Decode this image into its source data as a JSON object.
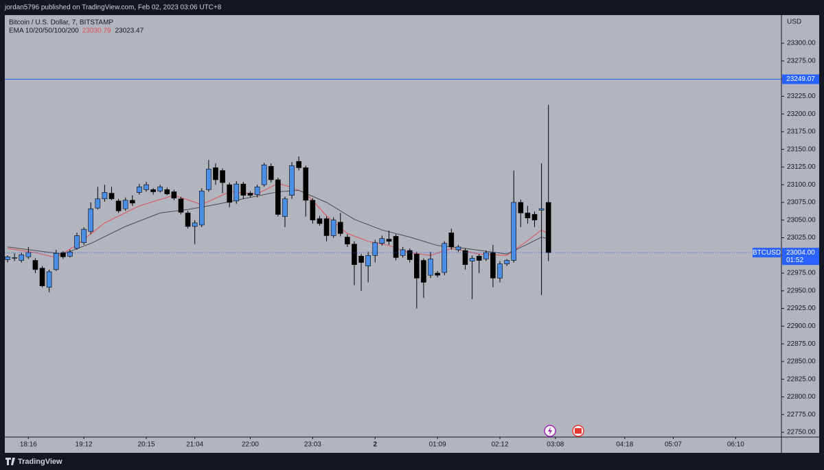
{
  "header": "jordan5796 published on TradingView.com, Feb 02, 2023 03:06 UTC+8",
  "brand": "TradingView",
  "chart_data": {
    "type": "candlestick",
    "title": "Bitcoin / U.S. Dollar, 7, BITSTAMP",
    "indicator": "EMA 10/20/50/100/200",
    "currency": "USD",
    "up_color": "#4a8ee6",
    "down_color": "#000000",
    "grid": false,
    "xlim": [
      -0.4,
      111.6
    ],
    "xticks": [
      {
        "value": 3,
        "label": "18:16"
      },
      {
        "value": 11,
        "label": "19:12"
      },
      {
        "value": 20,
        "label": "20:15"
      },
      {
        "value": 27,
        "label": "21:04"
      },
      {
        "value": 35,
        "label": "22:00"
      },
      {
        "value": 44,
        "label": "23:03"
      },
      {
        "value": 53,
        "label": "2"
      },
      {
        "value": 62,
        "label": "01:09"
      },
      {
        "value": 71,
        "label": "02:12"
      },
      {
        "value": 79,
        "label": "03:08"
      },
      {
        "value": 89,
        "label": "04:18"
      },
      {
        "value": 96,
        "label": "05:07"
      },
      {
        "value": 105,
        "label": "06:10"
      }
    ],
    "ylim": [
      22743.2,
      23339.8
    ],
    "yticks": [
      {
        "value": 22750,
        "label": "22750.00"
      },
      {
        "value": 22775,
        "label": "22775.00"
      },
      {
        "value": 22800,
        "label": "22800.00"
      },
      {
        "value": 22825,
        "label": "22825.00"
      },
      {
        "value": 22850,
        "label": "22850.00"
      },
      {
        "value": 22875,
        "label": "22875.00"
      },
      {
        "value": 22900,
        "label": "22900.00"
      },
      {
        "value": 22925,
        "label": "22925.00"
      },
      {
        "value": 22950,
        "label": "22950.00"
      },
      {
        "value": 22975,
        "label": "22975.00"
      },
      {
        "value": 23000,
        "label": "23000.00"
      },
      {
        "value": 23025,
        "label": "23025.00"
      },
      {
        "value": 23050,
        "label": "23050.00"
      },
      {
        "value": 23075,
        "label": "23075.00"
      },
      {
        "value": 23100,
        "label": "23100.00"
      },
      {
        "value": 23125,
        "label": "23125.00"
      },
      {
        "value": 23150,
        "label": "23150.00"
      },
      {
        "value": 23175,
        "label": "23175.00"
      },
      {
        "value": 23200,
        "label": "23200.00"
      },
      {
        "value": 23225,
        "label": "23225.00"
      },
      {
        "value": 23250,
        "label": "23250.00"
      },
      {
        "value": 23275,
        "label": "23275.00"
      },
      {
        "value": 23300,
        "label": "23300.00"
      }
    ],
    "open": [
      22994,
      22996,
      22993,
      22998,
      22993,
      22982,
      22955,
      22980,
      23004,
      22999,
      23010,
      23018,
      23034,
      23067,
      23080,
      23088,
      23077,
      23066,
      23078,
      23089,
      23093,
      23093,
      23091,
      23093,
      23090,
      23080,
      23060,
      23041,
      23043,
      23093,
      23124,
      23120,
      23100,
      23077,
      23101,
      23088,
      23086,
      23100,
      23126,
      23107,
      23055,
      23085,
      23133,
      23124,
      23078,
      23052,
      23052,
      23028,
      23047,
      23026,
      23016,
      22999,
      22985,
      23000,
      23017,
      23023,
      23027,
      23000,
      23007,
      23002,
      22993,
      22972,
      22975,
      22976,
      23032,
      23008,
      23007,
      22992,
      22999,
      22995,
      23004,
      22968,
      22988,
      22993,
      23075,
      23060,
      23058,
      23064,
      23075
    ],
    "high": [
      23000,
      23003,
      23004,
      23012,
      22996,
      22985,
      22980,
      23008,
      23006,
      23008,
      23032,
      23040,
      23075,
      23097,
      23100,
      23097,
      23080,
      23082,
      23085,
      23101,
      23104,
      23095,
      23100,
      23096,
      23093,
      23083,
      23063,
      23050,
      23095,
      23135,
      23130,
      23123,
      23103,
      23105,
      23104,
      23091,
      23100,
      23131,
      23130,
      23110,
      23083,
      23132,
      23140,
      23127,
      23081,
      23056,
      23055,
      23054,
      23060,
      23030,
      23020,
      23002,
      23005,
      23022,
      23028,
      23035,
      23030,
      23012,
      23010,
      23005,
      22996,
      23005,
      22978,
      23020,
      23038,
      23015,
      23010,
      23000,
      23002,
      23007,
      23015,
      22992,
      22995,
      23120,
      23079,
      23070,
      23062,
      23130,
      23213
    ],
    "low": [
      22990,
      22992,
      22990,
      22995,
      22975,
      22955,
      22948,
      22978,
      22995,
      22997,
      23008,
      23015,
      23030,
      23065,
      23076,
      23078,
      23060,
      23063,
      23070,
      23086,
      23090,
      23086,
      23089,
      23085,
      23078,
      23058,
      23038,
      23016,
      23040,
      23090,
      23100,
      23088,
      23068,
      23073,
      23080,
      23082,
      23082,
      23097,
      23103,
      23055,
      23040,
      23080,
      23120,
      23055,
      23045,
      23042,
      23020,
      23025,
      23027,
      23012,
      22958,
      22950,
      22962,
      22990,
      23014,
      23015,
      22993,
      22997,
      22990,
      22925,
      22940,
      22968,
      22969,
      22972,
      23008,
      23005,
      22980,
      22938,
      22975,
      22992,
      22955,
      22962,
      22985,
      22990,
      23040,
      23045,
      23040,
      22944,
      22992
    ],
    "close": [
      22998,
      22997,
      23001,
      23004,
      22980,
      22957,
      22977,
      23003,
      22998,
      23005,
      23028,
      23037,
      23066,
      23080,
      23089,
      23080,
      23063,
      23078,
      23074,
      23097,
      23100,
      23090,
      23097,
      23087,
      23081,
      23061,
      23041,
      23046,
      23091,
      23122,
      23107,
      23103,
      23075,
      23101,
      23085,
      23085,
      23097,
      23128,
      23107,
      23058,
      23080,
      23127,
      23124,
      23078,
      23050,
      23045,
      23028,
      23050,
      23031,
      23016,
      22987,
      22990,
      23000,
      23018,
      23024,
      23020,
      22997,
      23008,
      22994,
      22968,
      22962,
      22995,
      22972,
      23017,
      23012,
      23012,
      22987,
      22996,
      22993,
      23004,
      22968,
      22988,
      22993,
      23075,
      23060,
      23053,
      23050,
      23066,
      23004
    ],
    "overlays": [
      {
        "color": "#e0505a",
        "last": 23030.79,
        "x": [
          0,
          4,
          7,
          10,
          14,
          19,
          24,
          28,
          32,
          36,
          39,
          41,
          43,
          46,
          49,
          52,
          55,
          58,
          61,
          64,
          68,
          72,
          75,
          77,
          78
        ],
        "values": [
          23010,
          23004,
          22997,
          23015,
          23046,
          23070,
          23085,
          23072,
          23090,
          23087,
          23102,
          23096,
          23088,
          23056,
          23031,
          23020,
          23014,
          23004,
          23000,
          23010,
          23002,
          23000,
          23021,
          23036,
          23030.79
        ]
      },
      {
        "color": "#4a4a4a",
        "last": 23023.47,
        "x": [
          0,
          4,
          8,
          12,
          17,
          22,
          26,
          30,
          34,
          39,
          42,
          46,
          50,
          54,
          58,
          62,
          66,
          72,
          75,
          77,
          78
        ],
        "values": [
          23012,
          23007,
          23002,
          23017,
          23041,
          23060,
          23065,
          23072,
          23080,
          23090,
          23092,
          23075,
          23051,
          23036,
          23026,
          23014,
          23010,
          23002,
          23016,
          23026,
          23023.47
        ]
      }
    ],
    "alert_line": 23249.07,
    "price_line": {
      "value": 23004,
      "label": "23004.00"
    },
    "symbol": "BTCUSD",
    "countdown": "01:52"
  }
}
